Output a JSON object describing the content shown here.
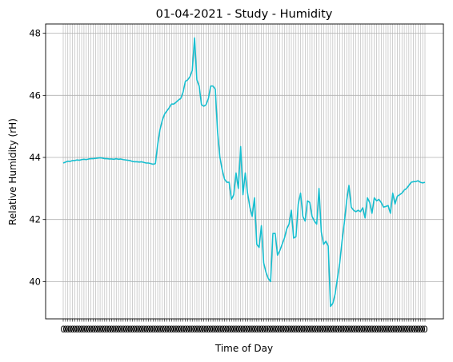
{
  "chart_data": {
    "type": "line",
    "title": "01-04-2021 - Study - Humidity",
    "xlabel": "Time of Day",
    "ylabel": "Relative Humidity (rH)",
    "ylim": [
      38.8,
      48.3
    ],
    "yticks": [
      40,
      42,
      44,
      46,
      48
    ],
    "grid": true,
    "x_tick_labels_illegible": true,
    "line_color": "#17becf",
    "grid_color": "#b0b0b0",
    "series": [
      {
        "values": [
          43.82,
          43.85,
          43.88,
          43.87,
          43.9,
          43.9,
          43.92,
          43.91,
          43.93,
          43.94,
          43.93,
          43.95,
          43.96,
          43.96,
          43.97,
          43.98,
          43.99,
          43.98,
          43.96,
          43.96,
          43.95,
          43.95,
          43.94,
          43.96,
          43.94,
          43.95,
          43.93,
          43.92,
          43.91,
          43.9,
          43.87,
          43.86,
          43.86,
          43.85,
          43.86,
          43.84,
          43.82,
          43.82,
          43.8,
          43.78,
          43.8,
          44.42,
          44.9,
          45.2,
          45.4,
          45.5,
          45.6,
          45.72,
          45.72,
          45.78,
          45.85,
          45.9,
          46.1,
          46.45,
          46.5,
          46.6,
          46.8,
          47.85,
          46.5,
          46.3,
          45.7,
          45.65,
          45.7,
          45.9,
          46.3,
          46.3,
          46.2,
          44.8,
          44.0,
          43.6,
          43.3,
          43.2,
          43.2,
          42.65,
          42.8,
          43.5,
          43.0,
          44.35,
          42.8,
          43.5,
          42.85,
          42.4,
          42.1,
          42.7,
          41.2,
          41.1,
          41.8,
          40.6,
          40.3,
          40.1,
          40.0,
          41.55,
          41.55,
          40.85,
          41.0,
          41.2,
          41.4,
          41.7,
          41.85,
          42.3,
          41.4,
          41.45,
          42.5,
          42.85,
          42.1,
          41.95,
          42.6,
          42.55,
          42.1,
          41.95,
          41.85,
          43.0,
          41.6,
          41.2,
          41.3,
          41.15,
          39.2,
          39.3,
          39.6,
          40.1,
          40.6,
          41.3,
          41.9,
          42.6,
          43.1,
          42.4,
          42.3,
          42.25,
          42.3,
          42.25,
          42.38,
          42.05,
          42.7,
          42.55,
          42.2,
          42.7,
          42.6,
          42.65,
          42.55,
          42.4,
          42.42,
          42.45,
          42.2,
          42.85,
          42.5,
          42.75,
          42.8,
          42.85,
          42.95,
          43.0,
          43.1,
          43.2,
          43.22,
          43.22,
          43.25,
          43.2,
          43.18,
          43.2
        ]
      }
    ]
  }
}
